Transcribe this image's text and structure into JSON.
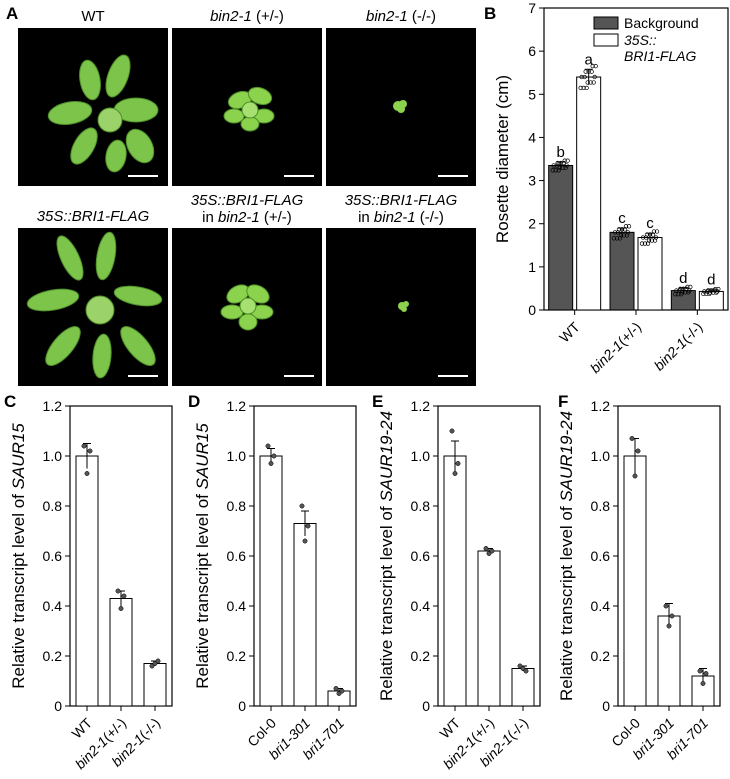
{
  "panel_labels": {
    "A": "A",
    "B": "B",
    "C": "C",
    "D": "D",
    "E": "E",
    "F": "F"
  },
  "photos": {
    "top": [
      {
        "title_italic": "",
        "title_plain": "WT",
        "title_suffix": ""
      },
      {
        "title_italic": "bin2-1",
        "title_plain": "",
        "title_suffix": " (+/-)"
      },
      {
        "title_italic": "bin2-1",
        "title_plain": "",
        "title_suffix": " (-/-)"
      }
    ],
    "bottom": [
      {
        "line1": "35S::BRI1-FLAG",
        "line2_plain": "",
        "line2_italic": "",
        "line2_suffix": ""
      },
      {
        "line1": "35S::BRI1-FLAG",
        "line2_plain": "in ",
        "line2_italic": "bin2-1",
        "line2_suffix": " (+/-)"
      },
      {
        "line1": "35S::BRI1-FLAG",
        "line2_plain": "in ",
        "line2_italic": "bin2-1",
        "line2_suffix": " (-/-)"
      }
    ]
  },
  "chart_data": [
    {
      "id": "B",
      "type": "bar",
      "categories": [
        "WT",
        "bin2-1(+/-)",
        "bin2-1(-/-)"
      ],
      "series": [
        {
          "name": "Background",
          "values": [
            3.35,
            1.8,
            0.45
          ],
          "errors": [
            0.08,
            0.1,
            0.06
          ],
          "letters": [
            "b",
            "c",
            "d"
          ],
          "color": "#555555"
        },
        {
          "name": "35S::BRI1-FLAG",
          "values": [
            5.4,
            1.68,
            0.43
          ],
          "errors": [
            0.18,
            0.1,
            0.04
          ],
          "letters": [
            "a",
            "c",
            "d"
          ],
          "color": "#ffffff"
        }
      ],
      "legend": {
        "label1": "Background",
        "label2a": "35S::",
        "label2b": "BRI1-FLAG",
        "placement": "top-right"
      },
      "ylabel": "Rosette diameter (cm)",
      "ylim": [
        0,
        7
      ],
      "yticks": [
        "0",
        "1",
        "2",
        "3",
        "4",
        "5",
        "6",
        "7"
      ]
    },
    {
      "id": "C",
      "type": "bar",
      "categories": [
        "WT",
        "bin2-1(+/-)",
        "bin2-1(-/-)"
      ],
      "values": [
        1.0,
        0.43,
        0.17
      ],
      "errors": [
        0.05,
        0.03,
        0.01
      ],
      "points": [
        [
          1.04,
          0.93,
          1.02
        ],
        [
          0.46,
          0.39,
          0.44
        ],
        [
          0.16,
          0.17,
          0.18
        ]
      ],
      "ylabel_plain": "Relative transcript level of ",
      "ylabel_italic": "SAUR15",
      "ylim": [
        0,
        1.2
      ],
      "yticks": [
        "0",
        "0.2",
        "0.4",
        "0.6",
        "0.8",
        "1.0",
        "1.2"
      ]
    },
    {
      "id": "D",
      "type": "bar",
      "categories": [
        "Col-0",
        "bri1-301",
        "bri1-701"
      ],
      "values": [
        1.0,
        0.73,
        0.06
      ],
      "errors": [
        0.03,
        0.05,
        0.01
      ],
      "points": [
        [
          1.04,
          0.97,
          1.0
        ],
        [
          0.8,
          0.66,
          0.72
        ],
        [
          0.07,
          0.05,
          0.06
        ]
      ],
      "ylabel_plain": "Relative transcript level of ",
      "ylabel_italic": "SAUR15",
      "ylim": [
        0,
        1.2
      ],
      "yticks": [
        "0",
        "0.2",
        "0.4",
        "0.6",
        "0.8",
        "1.0",
        "1.2"
      ]
    },
    {
      "id": "E",
      "type": "bar",
      "categories": [
        "WT",
        "bin2-1(+/-)",
        "bin2-1(-/-)"
      ],
      "values": [
        1.0,
        0.62,
        0.15
      ],
      "errors": [
        0.06,
        0.01,
        0.01
      ],
      "points": [
        [
          1.1,
          0.93,
          0.97
        ],
        [
          0.63,
          0.61,
          0.62
        ],
        [
          0.16,
          0.15,
          0.14
        ]
      ],
      "ylabel_plain": "Relative transcript level of ",
      "ylabel_italic": "SAUR19-24",
      "ylim": [
        0,
        1.2
      ],
      "yticks": [
        "0",
        "0.2",
        "0.4",
        "0.6",
        "0.8",
        "1.0",
        "1.2"
      ]
    },
    {
      "id": "F",
      "type": "bar",
      "categories": [
        "Col-0",
        "bri1-301",
        "bri1-701"
      ],
      "values": [
        1.0,
        0.36,
        0.12
      ],
      "errors": [
        0.07,
        0.05,
        0.03
      ],
      "points": [
        [
          1.07,
          0.92,
          1.02
        ],
        [
          0.4,
          0.32,
          0.36
        ],
        [
          0.14,
          0.09,
          0.13
        ]
      ],
      "ylabel_plain": "Relative transcript level of ",
      "ylabel_italic": "SAUR19-24",
      "ylim": [
        0,
        1.2
      ],
      "yticks": [
        "0",
        "0.2",
        "0.4",
        "0.6",
        "0.8",
        "1.0",
        "1.2"
      ]
    }
  ]
}
